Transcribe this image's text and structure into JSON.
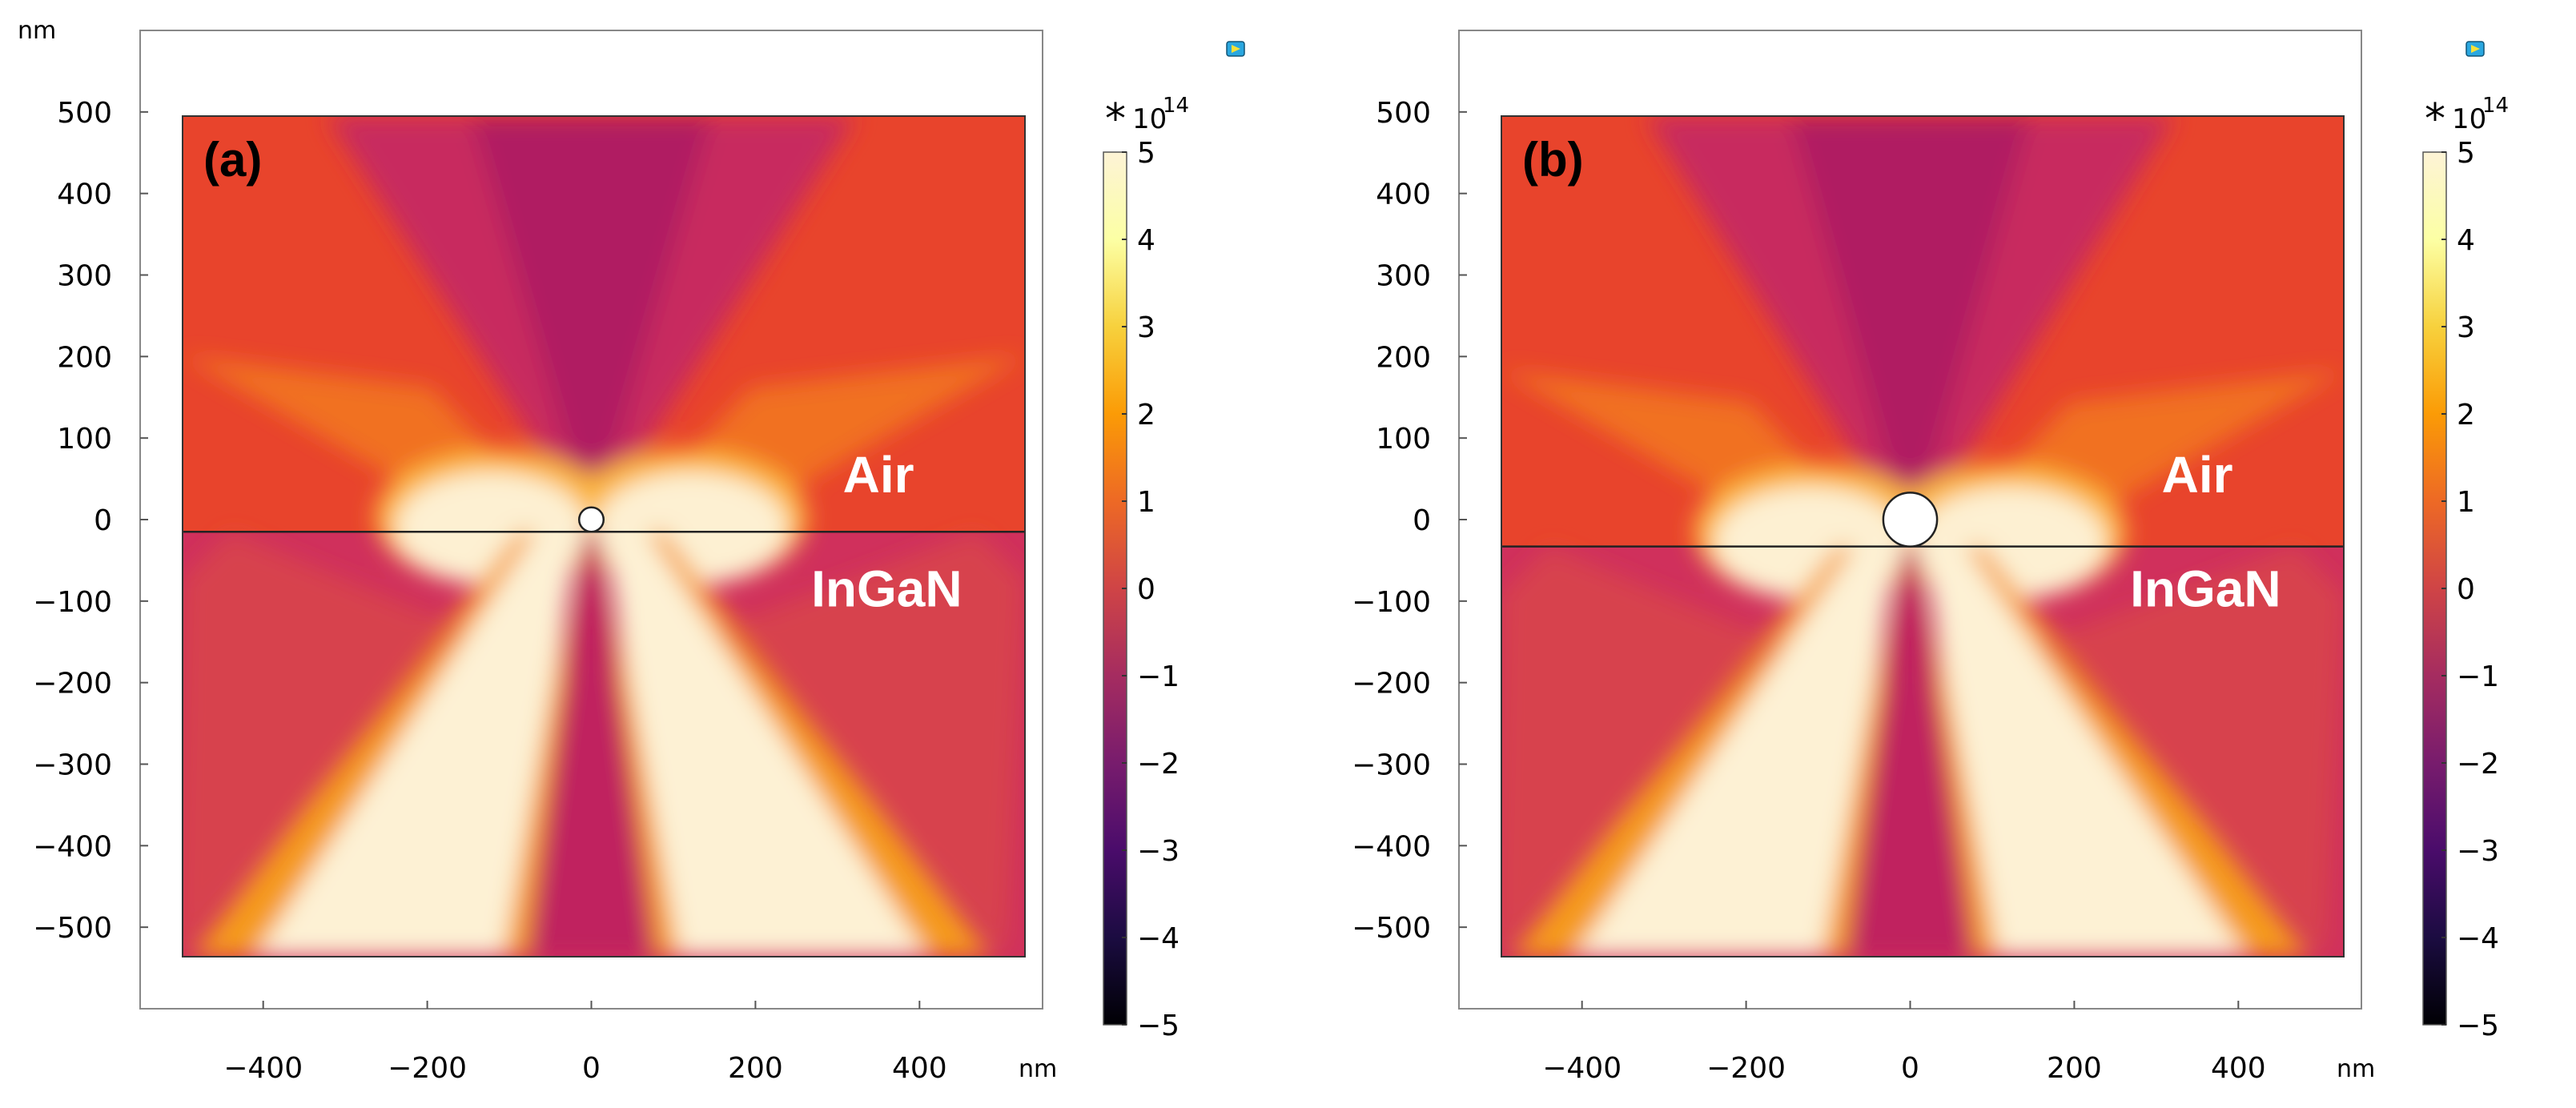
{
  "chart_data": [
    {
      "type": "heatmap",
      "panel_label": "(a)",
      "x_unit": "nm",
      "y_unit": "nm",
      "xlim": [
        -550,
        550
      ],
      "ylim": [
        -600,
        600
      ],
      "domain_x": [
        -500,
        500
      ],
      "domain_y": [
        -500,
        500
      ],
      "x_ticks": [
        {
          "value": -400,
          "label": "−400"
        },
        {
          "value": -200,
          "label": "−200"
        },
        {
          "value": 0,
          "label": "0"
        },
        {
          "value": 200,
          "label": "200"
        },
        {
          "value": 400,
          "label": "400"
        }
      ],
      "y_ticks": [
        {
          "value": 500,
          "label": "500"
        },
        {
          "value": 400,
          "label": "400"
        },
        {
          "value": 300,
          "label": "300"
        },
        {
          "value": 200,
          "label": "200"
        },
        {
          "value": 100,
          "label": "100"
        },
        {
          "value": 0,
          "label": "0"
        },
        {
          "value": -100,
          "label": "−100"
        },
        {
          "value": -200,
          "label": "−200"
        },
        {
          "value": -300,
          "label": "−300"
        },
        {
          "value": -400,
          "label": "−400"
        },
        {
          "value": -500,
          "label": "−500"
        }
      ],
      "interface_y": -15,
      "particle": {
        "x": 0,
        "y": 0,
        "radius": 15
      },
      "regions": [
        {
          "label": "Air",
          "x": 350,
          "y": 55
        },
        {
          "label": "InGaN",
          "x": 360,
          "y": -85
        }
      ],
      "colorbar": {
        "range": [
          -5,
          5
        ],
        "multiplier_star": "*",
        "multiplier_text": "10",
        "multiplier_exp": "14",
        "ticks": [
          {
            "value": 5,
            "label": "5"
          },
          {
            "value": 4,
            "label": "4"
          },
          {
            "value": 3,
            "label": "3"
          },
          {
            "value": 2,
            "label": "2"
          },
          {
            "value": 1,
            "label": "1"
          },
          {
            "value": 0,
            "label": "0"
          },
          {
            "value": -1,
            "label": "−1"
          },
          {
            "value": -2,
            "label": "−2"
          },
          {
            "value": -3,
            "label": "−3"
          },
          {
            "value": -4,
            "label": "−4"
          },
          {
            "value": -5,
            "label": "−5"
          }
        ],
        "colors": [
          "#000004",
          "#1b0c41",
          "#4a0c6b",
          "#781c6d",
          "#a52c60",
          "#cf4446",
          "#ed6925",
          "#fb9b06",
          "#f7d13d",
          "#fcffa4",
          "#fdf3d6"
        ]
      }
    },
    {
      "type": "heatmap",
      "panel_label": "(b)",
      "x_unit": "nm",
      "y_unit": "nm",
      "xlim": [
        -550,
        550
      ],
      "ylim": [
        -600,
        600
      ],
      "domain_x": [
        -500,
        500
      ],
      "domain_y": [
        -500,
        500
      ],
      "x_ticks": [
        {
          "value": -400,
          "label": "−400"
        },
        {
          "value": -200,
          "label": "−200"
        },
        {
          "value": 0,
          "label": "0"
        },
        {
          "value": 200,
          "label": "200"
        },
        {
          "value": 400,
          "label": "400"
        }
      ],
      "y_ticks": [
        {
          "value": 500,
          "label": "500"
        },
        {
          "value": 400,
          "label": "400"
        },
        {
          "value": 300,
          "label": "300"
        },
        {
          "value": 200,
          "label": "200"
        },
        {
          "value": 100,
          "label": "100"
        },
        {
          "value": 0,
          "label": "0"
        },
        {
          "value": -100,
          "label": "−100"
        },
        {
          "value": -200,
          "label": "−200"
        },
        {
          "value": -300,
          "label": "−300"
        },
        {
          "value": -400,
          "label": "−400"
        },
        {
          "value": -500,
          "label": "−500"
        }
      ],
      "interface_y": -33,
      "particle": {
        "x": 0,
        "y": 0,
        "radius": 33
      },
      "regions": [
        {
          "label": "Air",
          "x": 350,
          "y": 55
        },
        {
          "label": "InGaN",
          "x": 360,
          "y": -85
        }
      ],
      "colorbar": {
        "range": [
          -5,
          5
        ],
        "multiplier_star": "*",
        "multiplier_text": "10",
        "multiplier_exp": "14",
        "ticks": [
          {
            "value": 5,
            "label": "5"
          },
          {
            "value": 4,
            "label": "4"
          },
          {
            "value": 3,
            "label": "3"
          },
          {
            "value": 2,
            "label": "2"
          },
          {
            "value": 1,
            "label": "1"
          },
          {
            "value": 0,
            "label": "0"
          },
          {
            "value": -1,
            "label": "−1"
          },
          {
            "value": -2,
            "label": "−2"
          },
          {
            "value": -3,
            "label": "−3"
          },
          {
            "value": -4,
            "label": "−4"
          },
          {
            "value": -5,
            "label": "−5"
          }
        ],
        "colors": [
          "#000004",
          "#1b0c41",
          "#4a0c6b",
          "#781c6d",
          "#a52c60",
          "#cf4446",
          "#ed6925",
          "#fb9b06",
          "#f7d13d",
          "#fcffa4",
          "#fdf3d6"
        ]
      }
    }
  ]
}
